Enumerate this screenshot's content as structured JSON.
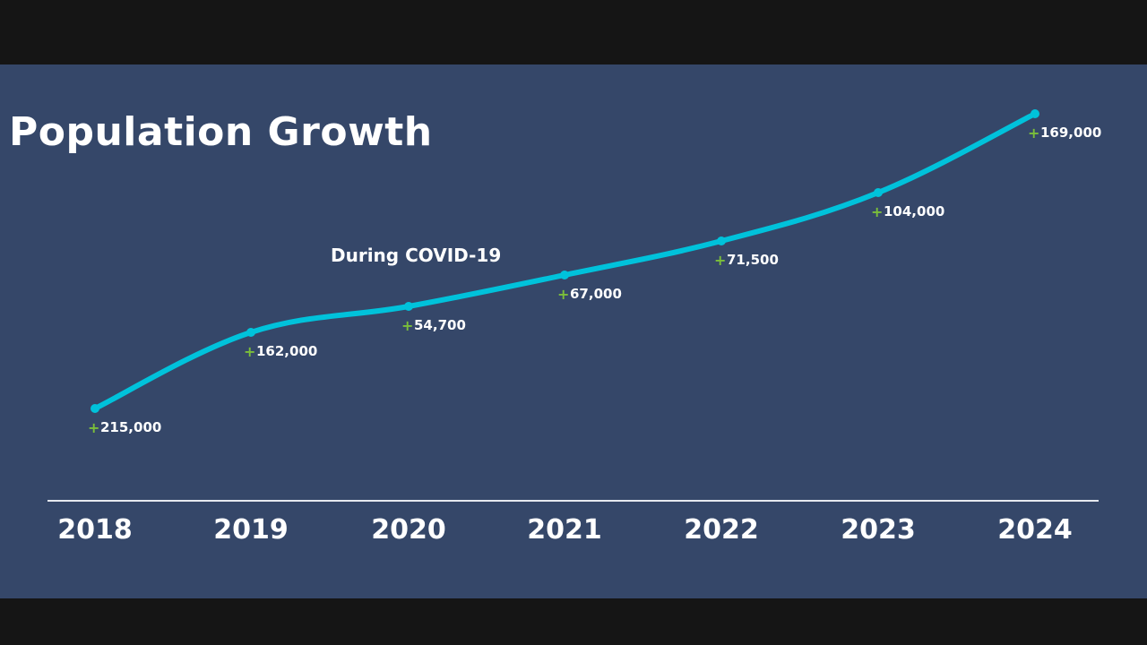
{
  "title": "Population Growth",
  "colors": {
    "background": "#354769",
    "frame": "#151515",
    "line": "#00c2db",
    "plus": "#7bbf3a",
    "text": "#ffffff",
    "axis": "#e6e9ef"
  },
  "chart_data": {
    "type": "line",
    "title": "Population Growth",
    "xlabel": "",
    "ylabel": "",
    "categories": [
      "2018",
      "2019",
      "2020",
      "2021",
      "2022",
      "2023",
      "2024"
    ],
    "series": [
      {
        "values": [
          215000,
          162000,
          54700,
          67000,
          71500,
          104000,
          169000
        ],
        "labels": [
          "215,000",
          "162,000",
          "54,700",
          "67,000",
          "71,500",
          "104,000",
          "169,000"
        ]
      }
    ],
    "label_prefix": "+",
    "annotations": [
      {
        "text": "During COVID-19",
        "near": "2020"
      }
    ],
    "grid": false,
    "legend": "none"
  }
}
